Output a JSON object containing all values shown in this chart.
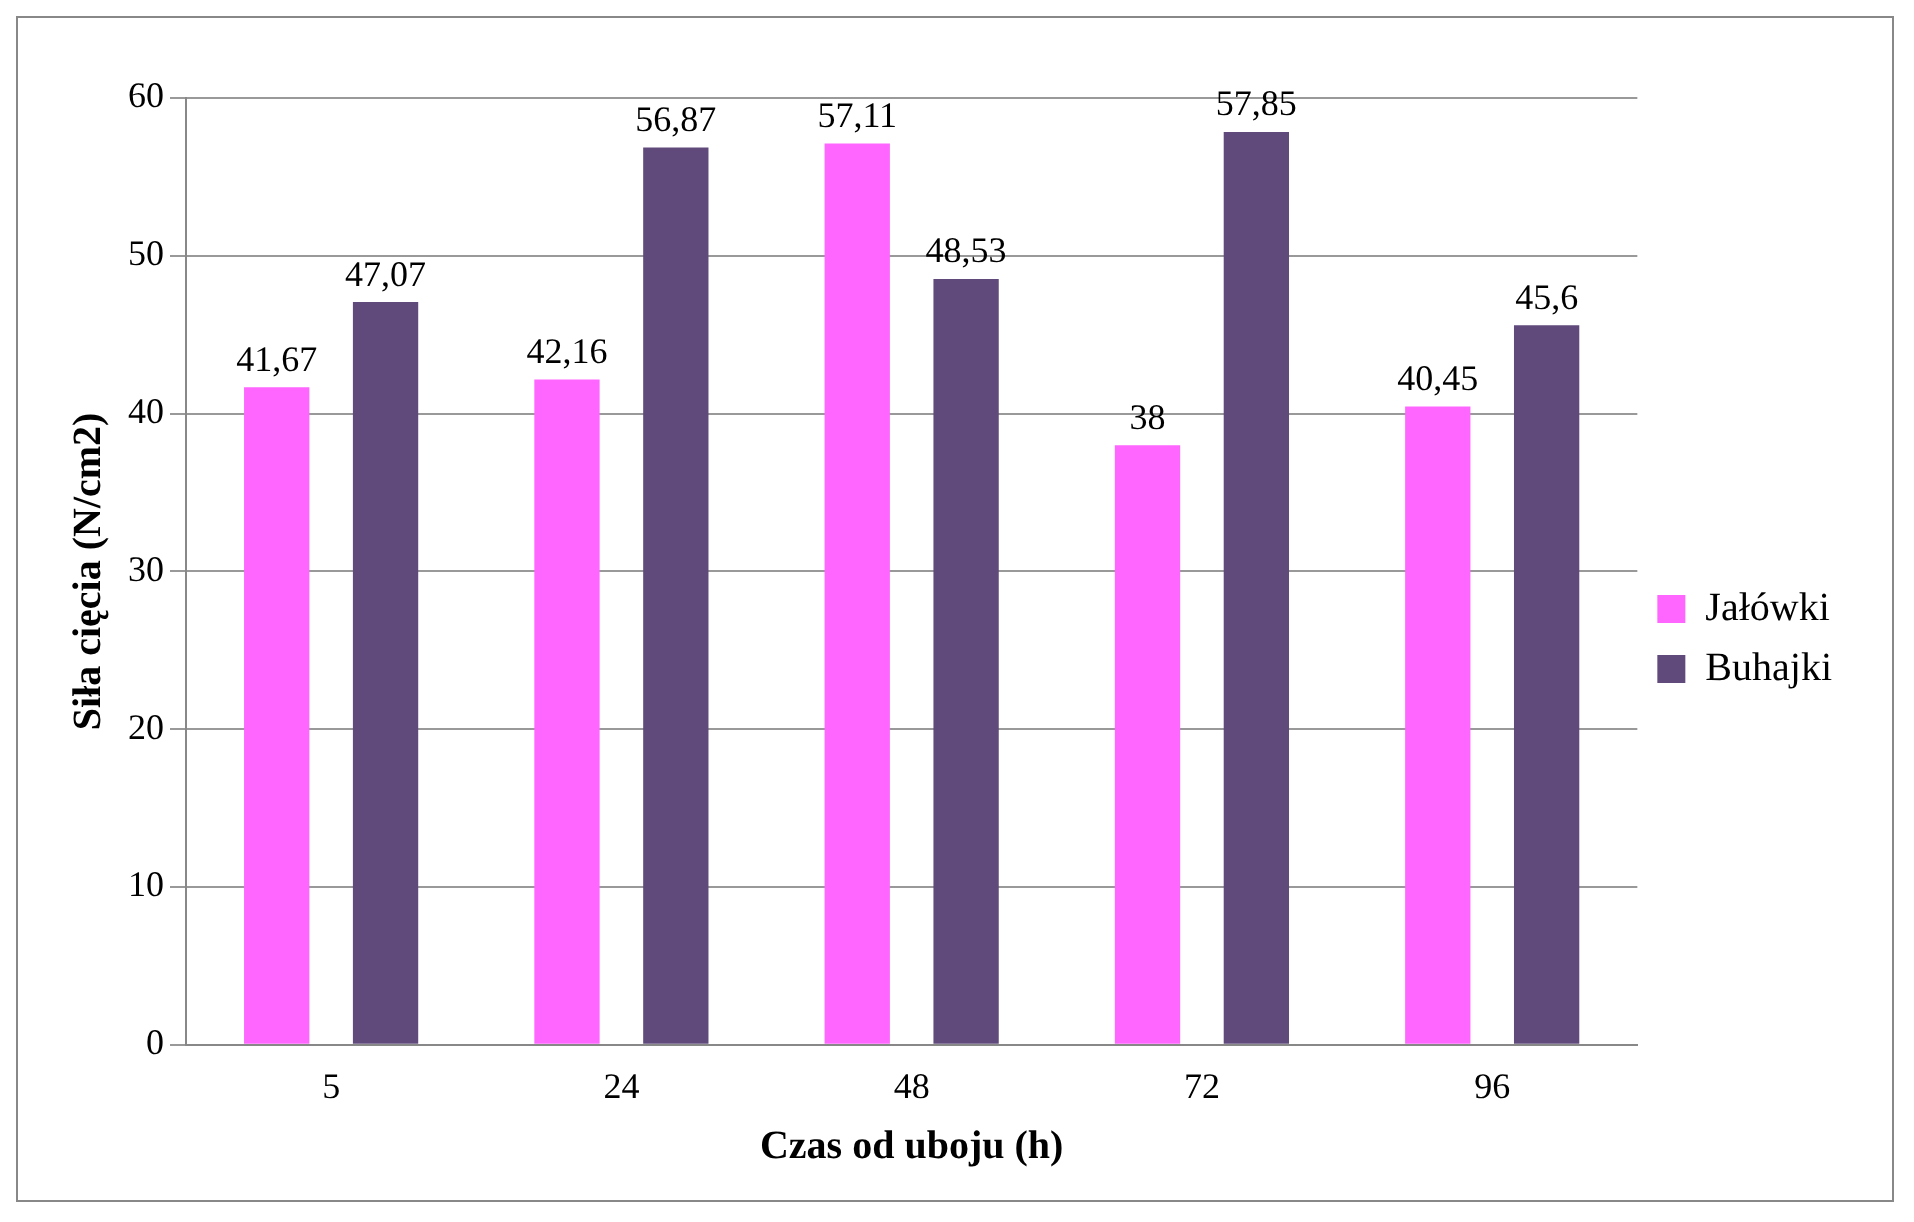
{
  "chart_data": {
    "type": "bar",
    "xlabel": "Czas od uboju (h)",
    "ylabel": "Siła cięcia (N/cm2)",
    "categories": [
      "5",
      "24",
      "48",
      "72",
      "96"
    ],
    "series": [
      {
        "name": "Jałówki",
        "color": "#ff66ff",
        "values": [
          41.67,
          42.16,
          57.11,
          38,
          40.45
        ],
        "value_labels": [
          "41,67",
          "42,16",
          "57,11",
          "38",
          "40,45"
        ]
      },
      {
        "name": "Buhajki",
        "color": "#604a7b",
        "values": [
          47.07,
          56.87,
          48.53,
          57.85,
          45.6
        ],
        "value_labels": [
          "47,07",
          "56,87",
          "48,53",
          "57,85",
          "45,6"
        ]
      }
    ],
    "ylim": [
      0,
      60
    ],
    "yticks": [
      0,
      10,
      20,
      30,
      40,
      50,
      60
    ],
    "grid": "y",
    "legend": "right"
  }
}
